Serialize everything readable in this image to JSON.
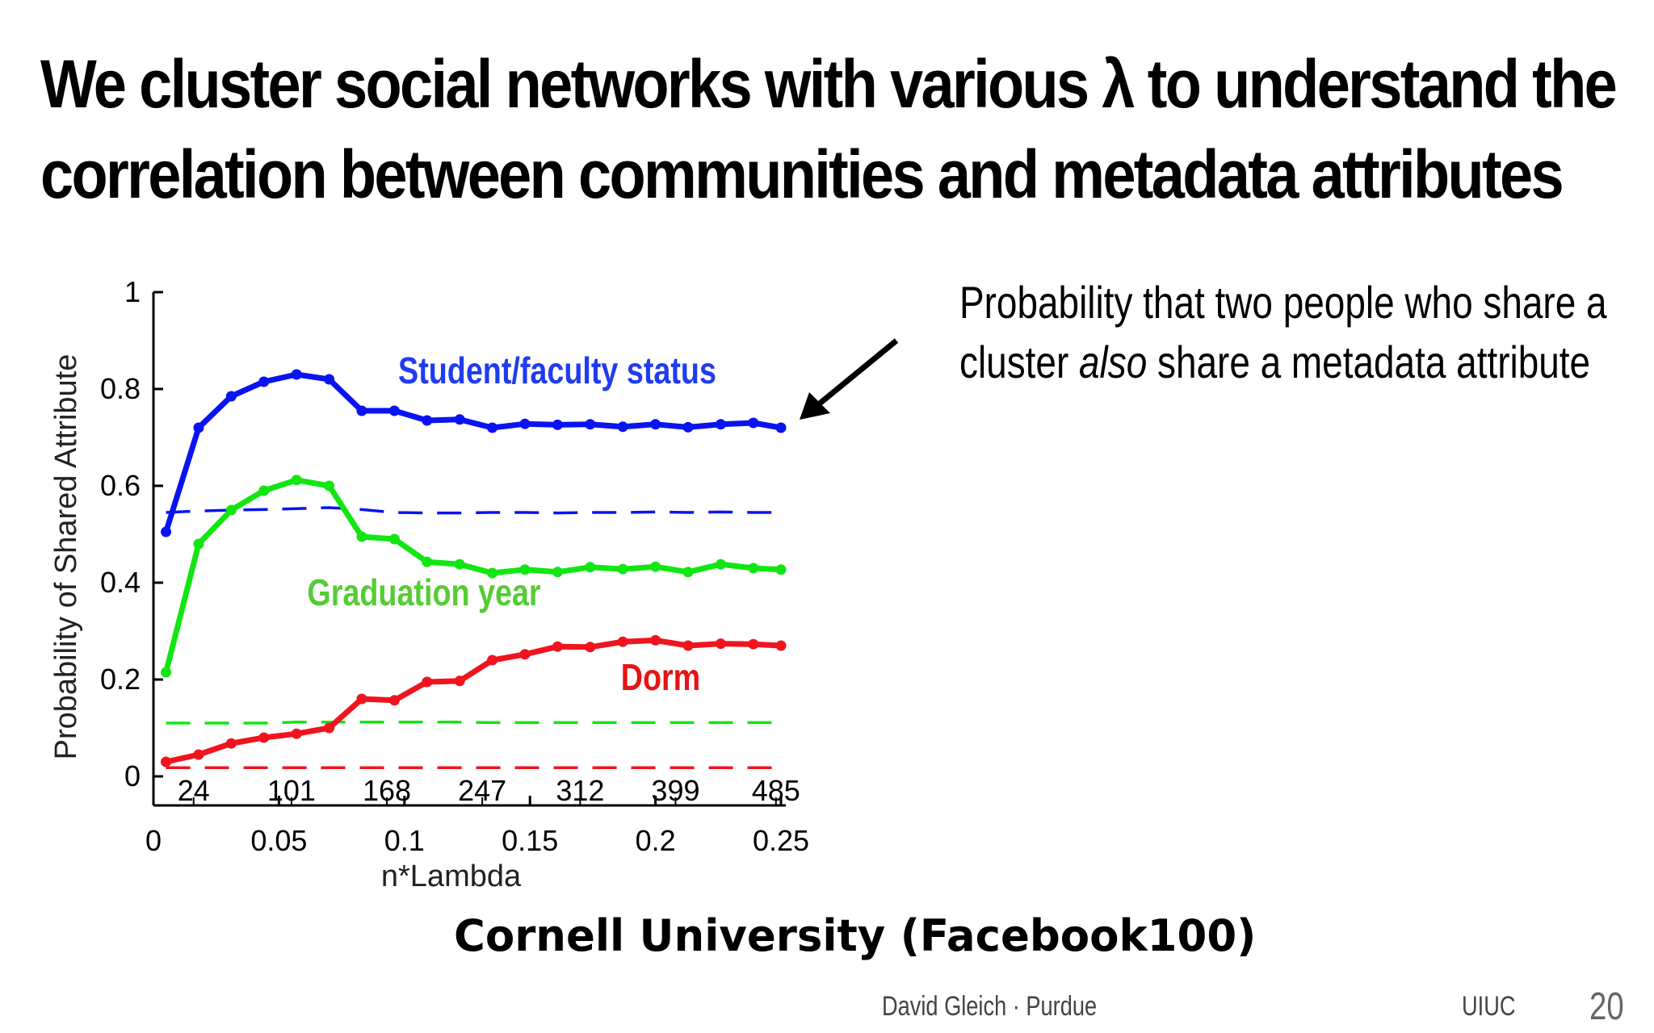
{
  "slide": {
    "title_line1": "We cluster social networks with various λ to understand the",
    "title_line2": "correlation between communities and metadata attributes",
    "annotation_prefix": "Probability that two people who share a cluster ",
    "annotation_emph": "also",
    "annotation_suffix": " share a metadata attribute",
    "annotation_line1": "Probability that two people who share a",
    "annotation_line2_a": "cluster ",
    "caption": "Cornell University (Facebook100)",
    "footer_center": "David Gleich · Purdue",
    "footer_right": "UIUC",
    "page_number": "20"
  },
  "chart_data": {
    "type": "line",
    "xlabel": "n*Lambda",
    "ylabel": "Probability of Shared Attribute",
    "xlim": [
      0,
      0.25
    ],
    "ylim": [
      0,
      1
    ],
    "x_ticks": [
      0,
      0.05,
      0.1,
      0.15,
      0.2,
      0.25
    ],
    "x_tick_labels": [
      "0",
      "0.05",
      "0.1",
      "0.15",
      "0.2",
      "0.25"
    ],
    "y_ticks": [
      0,
      0.2,
      0.4,
      0.6,
      0.8,
      1
    ],
    "y_tick_labels": [
      "0",
      "0.2",
      "0.4",
      "0.6",
      "0.8",
      "1"
    ],
    "cluster_count_labels": [
      {
        "x": 0.016,
        "label": "24"
      },
      {
        "x": 0.055,
        "label": "101"
      },
      {
        "x": 0.093,
        "label": "168"
      },
      {
        "x": 0.131,
        "label": "247"
      },
      {
        "x": 0.17,
        "label": "312"
      },
      {
        "x": 0.208,
        "label": "399"
      },
      {
        "x": 0.248,
        "label": "485"
      }
    ],
    "x": [
      0.005,
      0.018,
      0.031,
      0.044,
      0.057,
      0.07,
      0.083,
      0.096,
      0.109,
      0.122,
      0.135,
      0.148,
      0.161,
      0.174,
      0.187,
      0.2,
      0.213,
      0.226,
      0.239,
      0.25
    ],
    "series": [
      {
        "name": "Student/faculty status",
        "color": "#0a14f0",
        "values": [
          0.505,
          0.72,
          0.785,
          0.815,
          0.83,
          0.82,
          0.755,
          0.755,
          0.735,
          0.737,
          0.72,
          0.728,
          0.726,
          0.727,
          0.722,
          0.727,
          0.721,
          0.727,
          0.73,
          0.72
        ],
        "baseline": [
          0.545,
          0.548,
          0.55,
          0.551,
          0.553,
          0.555,
          0.551,
          0.545,
          0.544,
          0.544,
          0.545,
          0.545,
          0.544,
          0.545,
          0.545,
          0.546,
          0.545,
          0.546,
          0.545,
          0.545
        ]
      },
      {
        "name": "Graduation year",
        "color": "#12e612",
        "values": [
          0.215,
          0.48,
          0.55,
          0.59,
          0.612,
          0.6,
          0.495,
          0.49,
          0.443,
          0.438,
          0.42,
          0.427,
          0.422,
          0.432,
          0.428,
          0.433,
          0.422,
          0.438,
          0.43,
          0.427
        ],
        "baseline": [
          0.11,
          0.11,
          0.11,
          0.11,
          0.112,
          0.112,
          0.112,
          0.112,
          0.112,
          0.112,
          0.111,
          0.111,
          0.111,
          0.111,
          0.111,
          0.111,
          0.111,
          0.111,
          0.111,
          0.111
        ]
      },
      {
        "name": "Dorm",
        "color": "#f0141e",
        "values": [
          0.03,
          0.045,
          0.068,
          0.08,
          0.088,
          0.1,
          0.16,
          0.157,
          0.195,
          0.197,
          0.24,
          0.252,
          0.268,
          0.267,
          0.278,
          0.281,
          0.27,
          0.274,
          0.273,
          0.27
        ],
        "baseline": [
          0.018,
          0.018,
          0.018,
          0.018,
          0.018,
          0.018,
          0.018,
          0.018,
          0.018,
          0.018,
          0.018,
          0.018,
          0.018,
          0.018,
          0.018,
          0.018,
          0.018,
          0.018,
          0.018,
          0.018
        ]
      }
    ],
    "series_labels": [
      {
        "text": "Student/faculty status",
        "color": "#1f3cf0"
      },
      {
        "text": "Graduation year",
        "color": "#55cc33"
      },
      {
        "text": "Dorm",
        "color": "#e61414"
      }
    ],
    "grid": false,
    "legend": "inline labels"
  }
}
